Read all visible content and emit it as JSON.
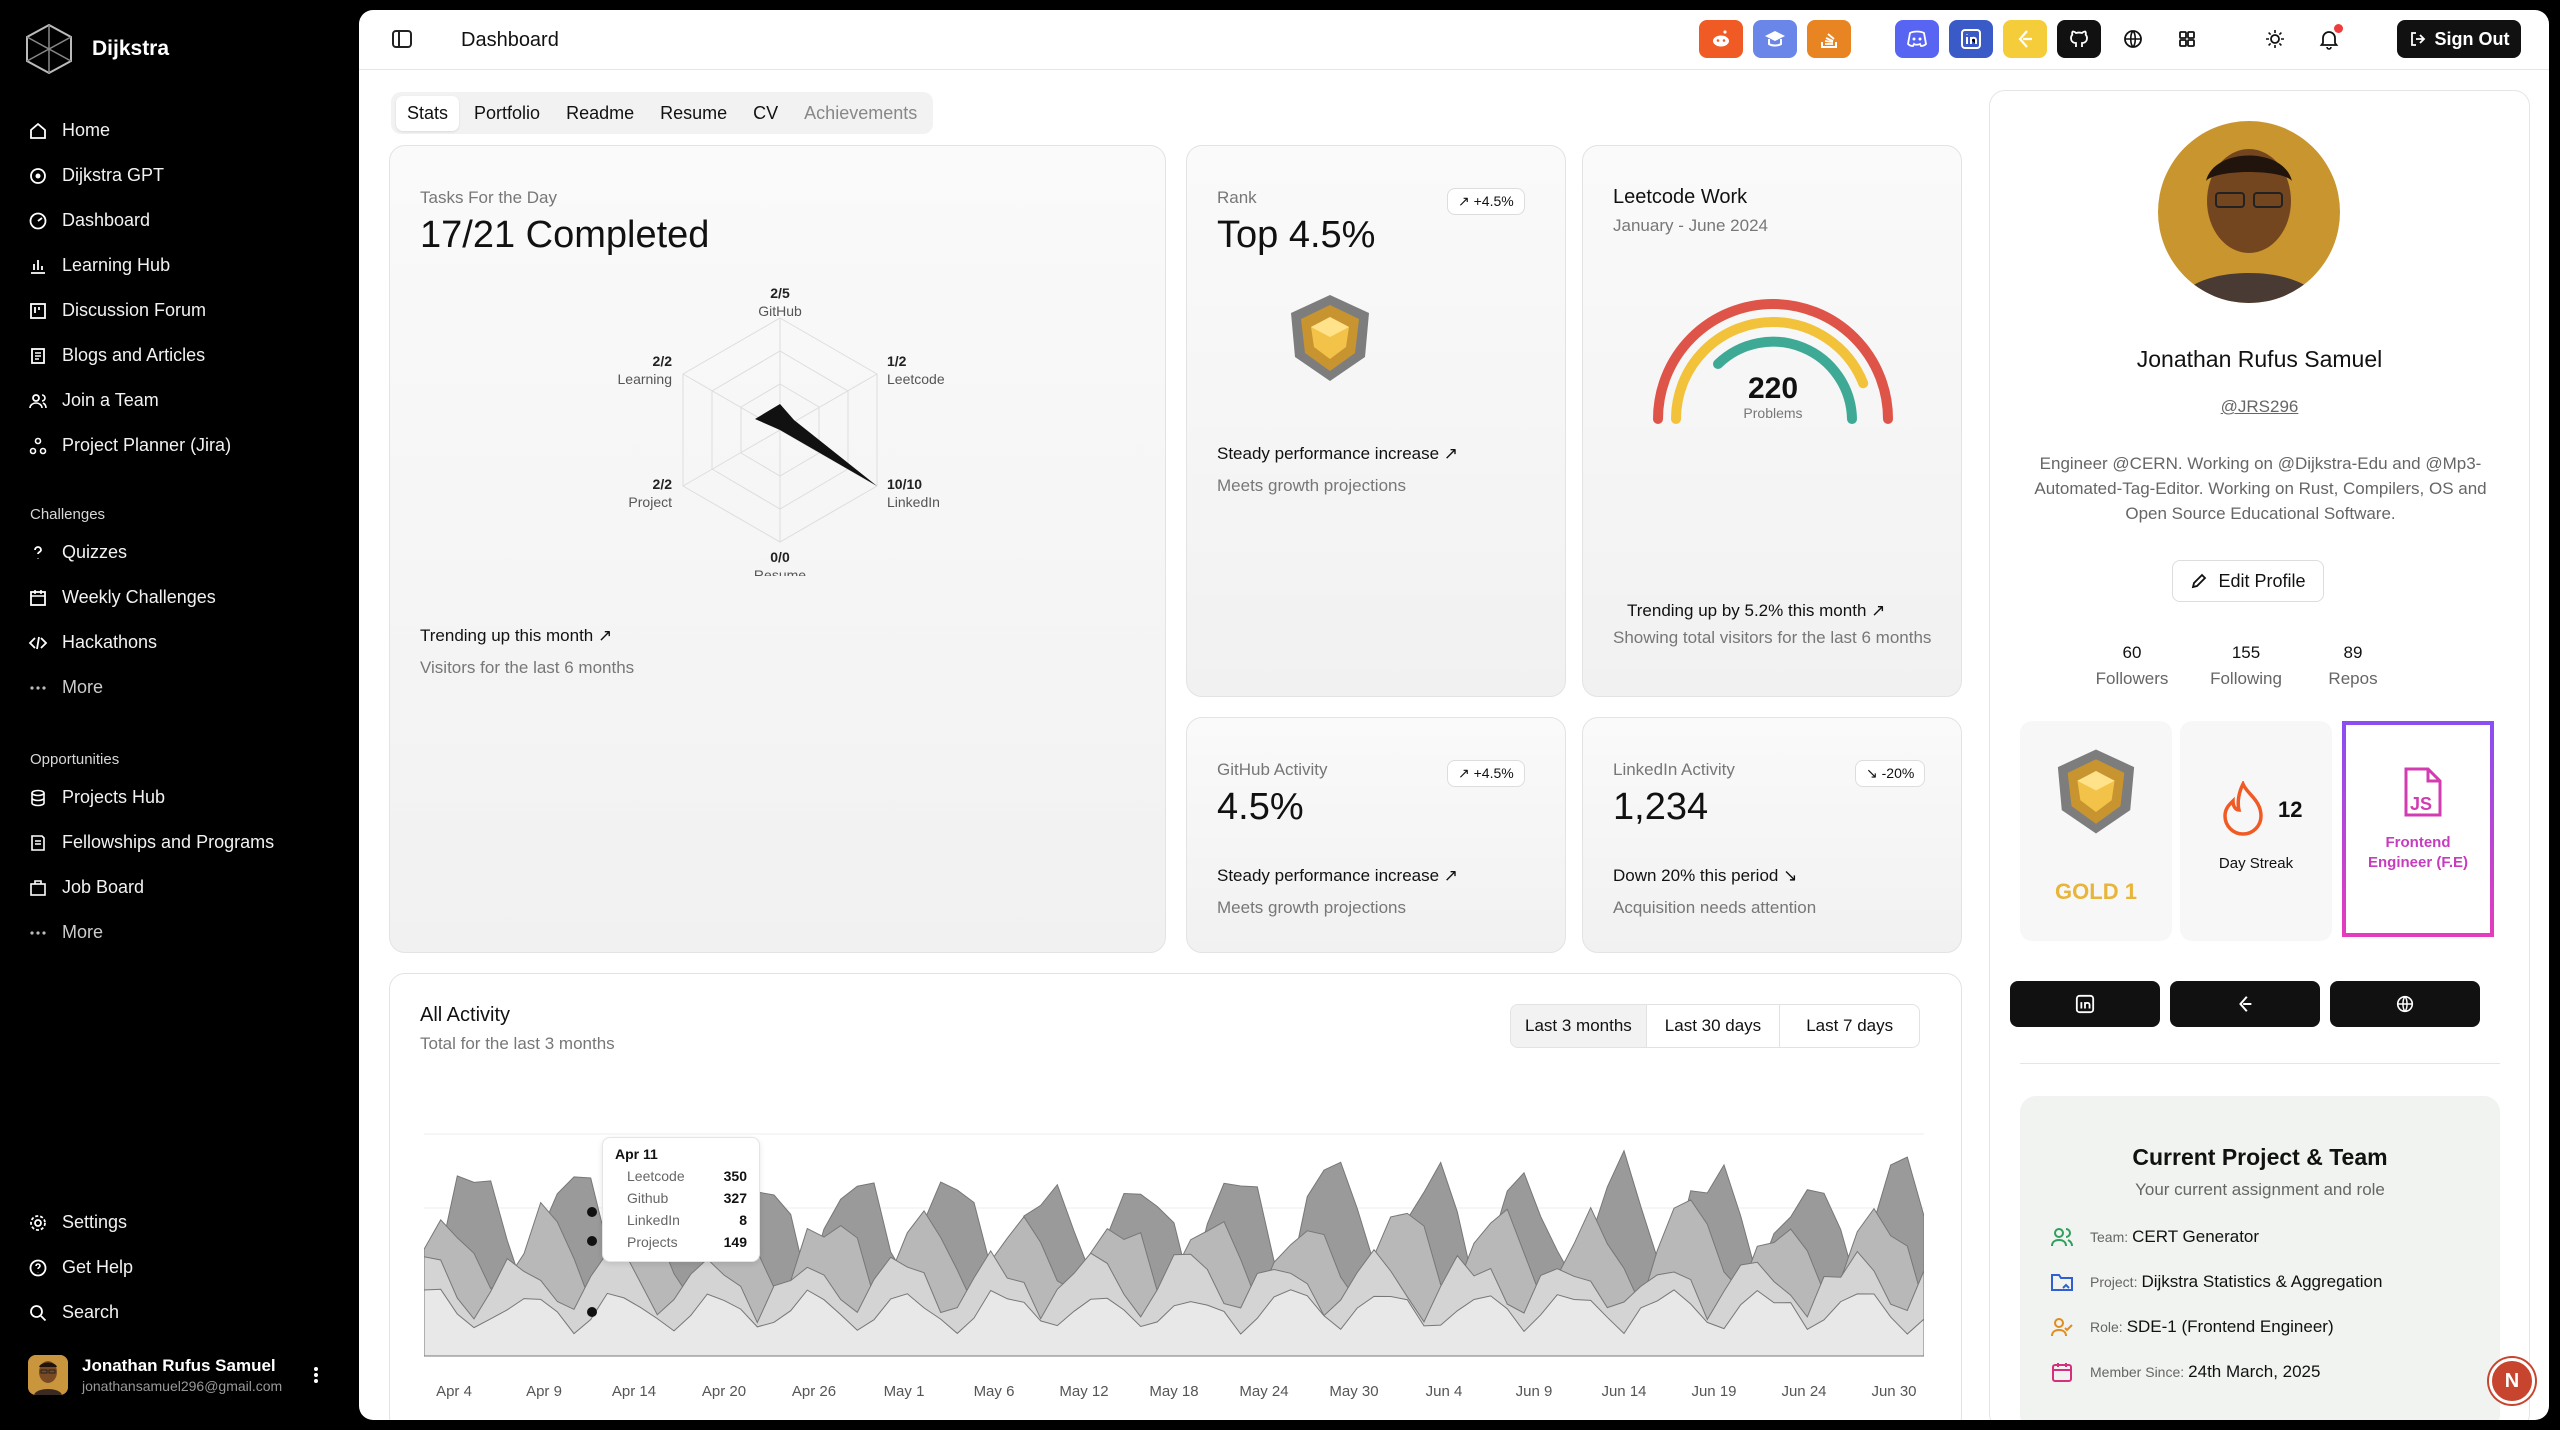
{
  "app": {
    "name": "Dijkstra"
  },
  "sidebar": {
    "items": [
      "Home",
      "Dijkstra GPT",
      "Dashboard",
      "Learning Hub",
      "Discussion Forum",
      "Blogs and Articles",
      "Join a Team",
      "Project Planner (Jira)"
    ],
    "challenges_title": "Challenges",
    "challenges": [
      "Quizzes",
      "Weekly Challenges",
      "Hackathons",
      "More"
    ],
    "opportunities_title": "Opportunities",
    "opportunities": [
      "Projects Hub",
      "Fellowships and Programs",
      "Job Board",
      "More"
    ],
    "bottom": [
      "Settings",
      "Get Help",
      "Search"
    ],
    "user": {
      "name": "Jonathan Rufus Samuel",
      "email": "jonathansamuel296@gmail.com"
    }
  },
  "header": {
    "title": "Dashboard",
    "sign_out": "Sign Out"
  },
  "tabs": [
    "Stats",
    "Portfolio",
    "Readme",
    "Resume",
    "CV",
    "Achievements"
  ],
  "tasks": {
    "label": "Tasks For the Day",
    "value": "17/21 Completed",
    "radar": [
      {
        "v": "2/5",
        "n": "GitHub"
      },
      {
        "v": "1/2",
        "n": "Leetcode"
      },
      {
        "v": "10/10",
        "n": "LinkedIn"
      },
      {
        "v": "0/0",
        "n": "Resume"
      },
      {
        "v": "2/2",
        "n": "Project"
      },
      {
        "v": "2/2",
        "n": "Learning"
      }
    ],
    "footer1": "Trending up this month",
    "footer2": "Visitors for the last 6 months"
  },
  "rank": {
    "label": "Rank",
    "value": "Top 4.5%",
    "badge": "+4.5%",
    "footer1": "Steady performance increase",
    "footer2": "Meets growth projections"
  },
  "leetcode": {
    "title": "Leetcode Work",
    "subtitle": "January - June 2024",
    "value": "220",
    "unit": "Problems",
    "footer1": "Trending up by 5.2% this month",
    "footer2": "Showing total visitors for the last 6 months"
  },
  "github": {
    "label": "GitHub Activity",
    "value": "4.5%",
    "badge": "+4.5%",
    "footer1": "Steady performance increase",
    "footer2": "Meets growth projections"
  },
  "linkedin": {
    "label": "LinkedIn Activity",
    "value": "1,234",
    "badge": "-20%",
    "footer1": "Down 20% this period",
    "footer2": "Acquisition needs attention"
  },
  "activity": {
    "title": "All Activity",
    "subtitle": "Total for the last 3 months",
    "ranges": [
      "Last 3 months",
      "Last 30 days",
      "Last 7 days"
    ],
    "xticks": [
      "Apr 4",
      "Apr 9",
      "Apr 14",
      "Apr 20",
      "Apr 26",
      "May 1",
      "May 6",
      "May 12",
      "May 18",
      "May 24",
      "May 30",
      "Jun 4",
      "Jun 9",
      "Jun 14",
      "Jun 19",
      "Jun 24",
      "Jun 30"
    ],
    "tooltip": {
      "date": "Apr 11",
      "rows": [
        {
          "k": "Leetcode",
          "v": "350"
        },
        {
          "k": "Github",
          "v": "327"
        },
        {
          "k": "LinkedIn",
          "v": "8"
        },
        {
          "k": "Projects",
          "v": "149"
        }
      ]
    }
  },
  "profile": {
    "name": "Jonathan Rufus Samuel",
    "handle": "@JRS296",
    "bio": "Engineer @CERN. Working on @Dijkstra-Edu and @Mp3-Automated-Tag-Editor. Working on Rust, Compilers, OS and Open Source Educational Software.",
    "edit": "Edit Profile",
    "stats": [
      {
        "v": "60",
        "k": "Followers"
      },
      {
        "v": "155",
        "k": "Following"
      },
      {
        "v": "89",
        "k": "Repos"
      }
    ],
    "rank": "GOLD 1",
    "streak": "12",
    "streak_label": "Day Streak",
    "role_badge": "Frontend Engineer (F.E)"
  },
  "project": {
    "title": "Current Project & Team",
    "subtitle": "Your current assignment and role",
    "rows": [
      {
        "k": "Team:",
        "v": "CERT Generator"
      },
      {
        "k": "Project:",
        "v": "Dijkstra Statistics & Aggregation"
      },
      {
        "k": "Role:",
        "v": "SDE-1 (Frontend Engineer)"
      },
      {
        "k": "Member Since:",
        "v": "24th March, 2025"
      }
    ]
  },
  "fab": "N"
}
